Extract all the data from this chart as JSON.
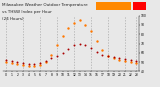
{
  "title_line1": "Milwaukee Weather Outdoor Temperature",
  "title_line2": "vs THSW Index per Hour",
  "title_line3": "(24 Hours)",
  "background_color": "#e8e8e8",
  "plot_bg_color": "#e8e8e8",
  "grid_color": "#aaaaaa",
  "hours": [
    0,
    1,
    2,
    3,
    4,
    5,
    6,
    7,
    8,
    9,
    10,
    11,
    12,
    13,
    14,
    15,
    16,
    17,
    18,
    19,
    20,
    21,
    22,
    23
  ],
  "temp_values": [
    52,
    51,
    50,
    49,
    48,
    48,
    49,
    51,
    54,
    57,
    60,
    64,
    68,
    70,
    68,
    65,
    61,
    58,
    56,
    55,
    54,
    53,
    52,
    51
  ],
  "thsw_values": [
    50,
    49,
    48,
    47,
    46,
    46,
    47,
    50,
    58,
    68,
    78,
    87,
    92,
    95,
    90,
    83,
    73,
    63,
    57,
    54,
    52,
    51,
    50,
    49
  ],
  "temp_color": "#aa0000",
  "thsw_color": "#ff7700",
  "ylim_min": 40,
  "ylim_max": 100,
  "yticks": [
    40,
    50,
    60,
    70,
    80,
    90,
    100
  ],
  "dashed_grid_hours": [
    0,
    3,
    6,
    9,
    12,
    15,
    18,
    21,
    23
  ],
  "legend_orange_color": "#ff8800",
  "legend_red_color": "#ff0000",
  "title_color": "#222222",
  "title_fontsize": 3.0
}
